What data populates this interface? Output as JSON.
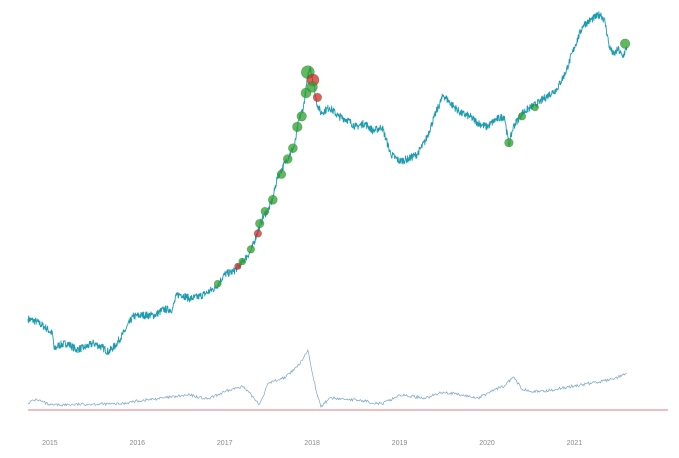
{
  "chart_data": {
    "type": "line",
    "title": "",
    "xlabel": "",
    "ylabel": "",
    "scale": "log",
    "grid": false,
    "legend": "none",
    "x_range": [
      2014.75,
      2021.75
    ],
    "x_ticks": [
      "2015",
      "2016",
      "2017",
      "2018",
      "2019",
      "2020",
      "2021"
    ],
    "colors": {
      "price_line": "#1f9bb0",
      "buy_marker": "#2ca02c",
      "sell_marker": "#d62728",
      "indicator_line": "#7aa6c8",
      "baseline": "#d94f5c",
      "tick_text": "#8a8a8a"
    },
    "series": [
      {
        "role": "price",
        "points": [
          [
            2014.75,
            0.42
          ],
          [
            2014.85,
            0.4
          ],
          [
            2014.95,
            0.36
          ],
          [
            2015.03,
            0.32
          ],
          [
            2015.05,
            0.24
          ],
          [
            2015.1,
            0.26
          ],
          [
            2015.2,
            0.27
          ],
          [
            2015.3,
            0.24
          ],
          [
            2015.4,
            0.25
          ],
          [
            2015.5,
            0.27
          ],
          [
            2015.6,
            0.25
          ],
          [
            2015.67,
            0.23
          ],
          [
            2015.75,
            0.26
          ],
          [
            2015.85,
            0.33
          ],
          [
            2015.95,
            0.44
          ],
          [
            2016.05,
            0.45
          ],
          [
            2016.2,
            0.45
          ],
          [
            2016.3,
            0.5
          ],
          [
            2016.4,
            0.5
          ],
          [
            2016.45,
            0.65
          ],
          [
            2016.5,
            0.66
          ],
          [
            2016.6,
            0.61
          ],
          [
            2016.7,
            0.63
          ],
          [
            2016.8,
            0.68
          ],
          [
            2016.9,
            0.75
          ],
          [
            2017.0,
            0.95
          ],
          [
            2017.1,
            1.0
          ],
          [
            2017.2,
            1.18
          ],
          [
            2017.3,
            1.45
          ],
          [
            2017.4,
            2.3
          ],
          [
            2017.45,
            2.8
          ],
          [
            2017.5,
            3.1
          ],
          [
            2017.55,
            3.8
          ],
          [
            2017.6,
            5.5
          ],
          [
            2017.7,
            7.5
          ],
          [
            2017.8,
            10.0
          ],
          [
            2017.85,
            16.0
          ],
          [
            2017.9,
            20.0
          ],
          [
            2017.95,
            35.0
          ],
          [
            2017.98,
            42.0
          ],
          [
            2018.02,
            30.0
          ],
          [
            2018.05,
            22.0
          ],
          [
            2018.1,
            18.0
          ],
          [
            2018.2,
            20.0
          ],
          [
            2018.3,
            17.0
          ],
          [
            2018.4,
            16.0
          ],
          [
            2018.5,
            14.0
          ],
          [
            2018.6,
            15.0
          ],
          [
            2018.7,
            13.0
          ],
          [
            2018.8,
            14.0
          ],
          [
            2018.9,
            8.5
          ],
          [
            2019.0,
            7.5
          ],
          [
            2019.1,
            7.8
          ],
          [
            2019.2,
            8.5
          ],
          [
            2019.3,
            11.0
          ],
          [
            2019.4,
            17.0
          ],
          [
            2019.5,
            25.0
          ],
          [
            2019.6,
            21.0
          ],
          [
            2019.7,
            18.0
          ],
          [
            2019.8,
            17.0
          ],
          [
            2019.9,
            15.0
          ],
          [
            2020.0,
            14.0
          ],
          [
            2020.1,
            16.0
          ],
          [
            2020.2,
            17.0
          ],
          [
            2020.25,
            10.0
          ],
          [
            2020.3,
            14.0
          ],
          [
            2020.4,
            18.0
          ],
          [
            2020.5,
            20.0
          ],
          [
            2020.6,
            22.0
          ],
          [
            2020.7,
            25.0
          ],
          [
            2020.8,
            28.0
          ],
          [
            2020.9,
            38.0
          ],
          [
            2021.0,
            60.0
          ],
          [
            2021.1,
            90.0
          ],
          [
            2021.2,
            100.0
          ],
          [
            2021.3,
            110.0
          ],
          [
            2021.35,
            95.0
          ],
          [
            2021.4,
            60.0
          ],
          [
            2021.45,
            52.0
          ],
          [
            2021.5,
            58.0
          ],
          [
            2021.55,
            50.0
          ],
          [
            2021.6,
            60.0
          ]
        ]
      },
      {
        "role": "indicator",
        "points": [
          [
            2014.75,
            0.12
          ],
          [
            2014.85,
            0.18
          ],
          [
            2015.0,
            0.08
          ],
          [
            2015.5,
            0.1
          ],
          [
            2015.8,
            0.1
          ],
          [
            2016.0,
            0.15
          ],
          [
            2016.3,
            0.2
          ],
          [
            2016.6,
            0.25
          ],
          [
            2016.8,
            0.18
          ],
          [
            2017.0,
            0.3
          ],
          [
            2017.2,
            0.4
          ],
          [
            2017.4,
            0.1
          ],
          [
            2017.5,
            0.45
          ],
          [
            2017.7,
            0.55
          ],
          [
            2017.85,
            0.75
          ],
          [
            2017.95,
            1.0
          ],
          [
            2018.05,
            0.3
          ],
          [
            2018.1,
            0.05
          ],
          [
            2018.2,
            0.2
          ],
          [
            2018.4,
            0.18
          ],
          [
            2018.6,
            0.15
          ],
          [
            2018.8,
            0.1
          ],
          [
            2019.0,
            0.25
          ],
          [
            2019.3,
            0.2
          ],
          [
            2019.5,
            0.3
          ],
          [
            2019.7,
            0.25
          ],
          [
            2019.9,
            0.2
          ],
          [
            2020.1,
            0.35
          ],
          [
            2020.2,
            0.4
          ],
          [
            2020.3,
            0.55
          ],
          [
            2020.4,
            0.35
          ],
          [
            2020.6,
            0.3
          ],
          [
            2020.8,
            0.35
          ],
          [
            2021.0,
            0.4
          ],
          [
            2021.2,
            0.45
          ],
          [
            2021.4,
            0.5
          ],
          [
            2021.5,
            0.55
          ],
          [
            2021.6,
            0.6
          ]
        ]
      }
    ],
    "markers": [
      {
        "x": 2016.92,
        "y": 0.8,
        "type": "buy",
        "size": 0.3
      },
      {
        "x": 2017.15,
        "y": 1.1,
        "type": "sell",
        "size": 0.25
      },
      {
        "x": 2017.2,
        "y": 1.2,
        "type": "buy",
        "size": 0.3
      },
      {
        "x": 2017.3,
        "y": 1.5,
        "type": "buy",
        "size": 0.35
      },
      {
        "x": 2017.38,
        "y": 2.0,
        "type": "sell",
        "size": 0.35
      },
      {
        "x": 2017.4,
        "y": 2.4,
        "type": "buy",
        "size": 0.45
      },
      {
        "x": 2017.46,
        "y": 3.0,
        "type": "buy",
        "size": 0.4
      },
      {
        "x": 2017.55,
        "y": 3.7,
        "type": "buy",
        "size": 0.5
      },
      {
        "x": 2017.65,
        "y": 5.9,
        "type": "buy",
        "size": 0.45
      },
      {
        "x": 2017.72,
        "y": 7.8,
        "type": "buy",
        "size": 0.5
      },
      {
        "x": 2017.78,
        "y": 9.5,
        "type": "buy",
        "size": 0.5
      },
      {
        "x": 2017.83,
        "y": 14.0,
        "type": "buy",
        "size": 0.55
      },
      {
        "x": 2017.88,
        "y": 17.0,
        "type": "buy",
        "size": 0.55
      },
      {
        "x": 2017.93,
        "y": 26.0,
        "type": "buy",
        "size": 0.6
      },
      {
        "x": 2017.95,
        "y": 38.0,
        "type": "buy",
        "size": 0.9
      },
      {
        "x": 2018.01,
        "y": 33.0,
        "type": "sell",
        "size": 0.8
      },
      {
        "x": 2018.0,
        "y": 29.0,
        "type": "buy",
        "size": 0.65
      },
      {
        "x": 2018.06,
        "y": 24.0,
        "type": "sell",
        "size": 0.45
      },
      {
        "x": 2020.25,
        "y": 10.5,
        "type": "buy",
        "size": 0.45
      },
      {
        "x": 2020.4,
        "y": 17.0,
        "type": "buy",
        "size": 0.35
      },
      {
        "x": 2020.55,
        "y": 20.0,
        "type": "buy",
        "size": 0.3
      },
      {
        "x": 2021.58,
        "y": 64.0,
        "type": "buy",
        "size": 0.55
      }
    ]
  }
}
